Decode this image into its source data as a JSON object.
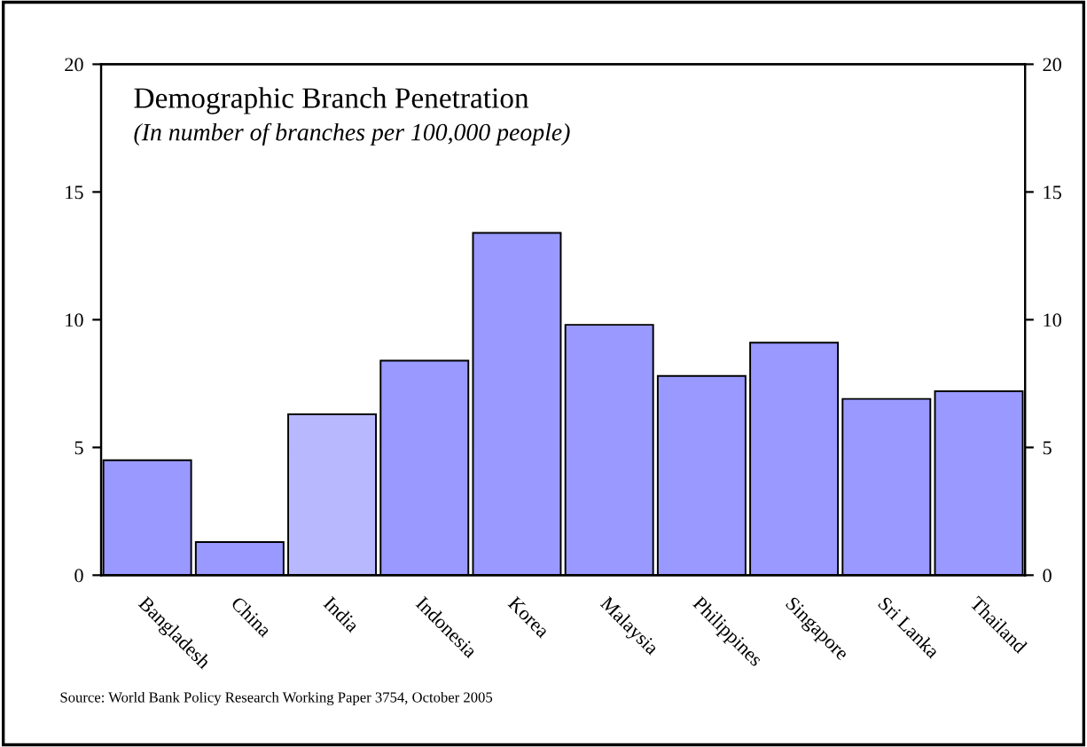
{
  "chart_data": {
    "type": "bar",
    "title": "Demographic Branch Penetration",
    "subtitle": "(In number of branches per 100,000 people)",
    "categories": [
      "Bangladesh",
      "China",
      "India",
      "Indonesia",
      "Korea",
      "Malaysia",
      "Philippines",
      "Singapore",
      "Sri Lanka",
      "Thailand"
    ],
    "values": [
      4.5,
      1.3,
      6.3,
      8.4,
      13.4,
      9.8,
      7.8,
      9.1,
      6.9,
      7.2
    ],
    "colors": [
      "#9999ff",
      "#9999ff",
      "#b8b8ff",
      "#9999ff",
      "#9999ff",
      "#9999ff",
      "#9999ff",
      "#9999ff",
      "#9999ff",
      "#9999ff"
    ],
    "ylim": [
      0,
      20
    ],
    "yticks": [
      0,
      5,
      10,
      15,
      20
    ],
    "y2lim": [
      0,
      20
    ],
    "y2ticks": [
      0,
      5,
      10,
      15,
      20
    ],
    "grid": false,
    "legend": false,
    "annotations": [
      "Source: World Bank Policy Research Working Paper 3754, October 2005"
    ]
  }
}
